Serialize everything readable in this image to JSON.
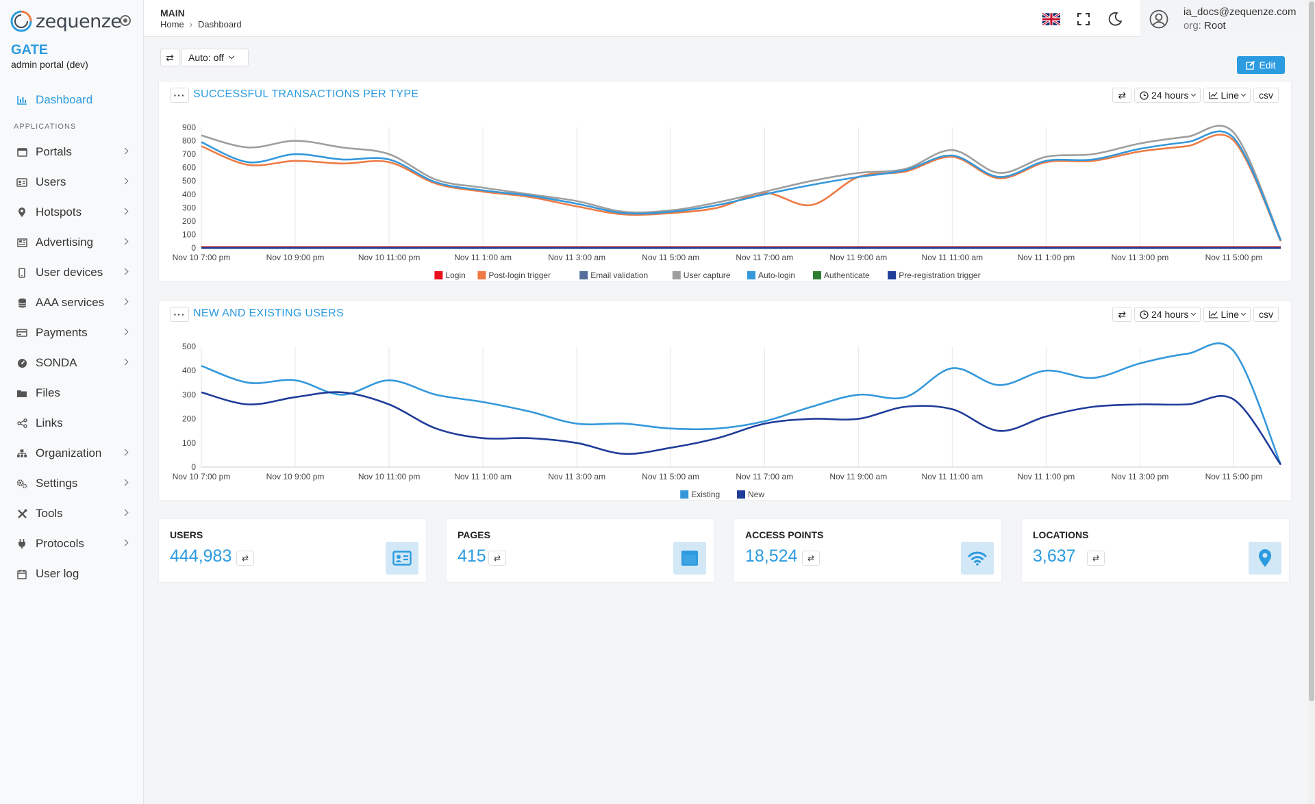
{
  "sidebar": {
    "logo_text": "zequenze",
    "brand_name": "GATE",
    "brand_sub": "admin portal (dev)",
    "section_label": "APPLICATIONS",
    "dashboard": {
      "label": "Dashboard",
      "icon": "chart-bar-icon"
    },
    "items": [
      {
        "label": "Portals",
        "icon": "window-icon",
        "chevron": true
      },
      {
        "label": "Users",
        "icon": "id-card-icon",
        "chevron": true
      },
      {
        "label": "Hotspots",
        "icon": "map-pin-icon",
        "chevron": true
      },
      {
        "label": "Advertising",
        "icon": "newspaper-icon",
        "chevron": true
      },
      {
        "label": "User devices",
        "icon": "mobile-icon",
        "chevron": true
      },
      {
        "label": "AAA services",
        "icon": "database-icon",
        "chevron": true
      },
      {
        "label": "Payments",
        "icon": "credit-card-icon",
        "chevron": true
      },
      {
        "label": "SONDA",
        "icon": "gauge-icon",
        "chevron": true
      },
      {
        "label": "Files",
        "icon": "folder-icon",
        "chevron": false
      },
      {
        "label": "Links",
        "icon": "share-icon",
        "chevron": false
      },
      {
        "label": "Organization",
        "icon": "sitemap-icon",
        "chevron": true
      },
      {
        "label": "Settings",
        "icon": "cogs-icon",
        "chevron": true
      },
      {
        "label": "Tools",
        "icon": "tools-icon",
        "chevron": true
      },
      {
        "label": "Protocols",
        "icon": "plug-icon",
        "chevron": true
      },
      {
        "label": "User log",
        "icon": "calendar-icon",
        "chevron": false
      }
    ]
  },
  "header": {
    "title": "MAIN",
    "breadcrumb": [
      "Home",
      "Dashboard"
    ],
    "breadcrumb_sep": "›",
    "user_email": "ia_docs@zequenze.com",
    "org_label": "org:",
    "org_value": "Root"
  },
  "toolbar": {
    "refresh_glyph": "⇄",
    "auto_label": "Auto: off",
    "edit_label": "Edit"
  },
  "card_tools": {
    "range_label": "24 hours",
    "type_label": "Line",
    "csv_label": "csv",
    "dots": "···"
  },
  "colors": {
    "accent": "#2c9be0",
    "login": "#e8111b",
    "post_login": "#ee7b44",
    "email": "#546e9a",
    "user_capture": "#9e9e9e",
    "auto_login": "#3498db",
    "authenticate": "#2e7d32",
    "prereg": "#1f3c99",
    "existing": "#3498db",
    "new": "#1f3c99"
  },
  "chart_data": [
    {
      "title": "SUCCESSFUL TRANSACTIONS PER TYPE",
      "type": "line",
      "ylim": [
        0,
        900
      ],
      "yticks": [
        0,
        100,
        200,
        300,
        400,
        500,
        600,
        700,
        800,
        900
      ],
      "xlabels": [
        "Nov 10 7:00 pm",
        "Nov 10 9:00 pm",
        "Nov 10 11:00 pm",
        "Nov 11 1:00 am",
        "Nov 11 3:00 am",
        "Nov 11 5:00 am",
        "Nov 11 7:00 am",
        "Nov 11 9:00 am",
        "Nov 11 11:00 am",
        "Nov 11 1:00 pm",
        "Nov 11 3:00 pm",
        "Nov 11 5:00 pm"
      ],
      "x": [
        0,
        1,
        2,
        3,
        4,
        5,
        6,
        7,
        8,
        9,
        10,
        11,
        12,
        13,
        14,
        15,
        16,
        17,
        18,
        19,
        20,
        21,
        22,
        23
      ],
      "series": [
        {
          "name": "Login",
          "color": "#e8111b",
          "values": [
            5,
            5,
            5,
            5,
            5,
            5,
            5,
            5,
            5,
            5,
            5,
            5,
            5,
            5,
            5,
            5,
            5,
            5,
            5,
            5,
            5,
            5,
            5,
            5
          ]
        },
        {
          "name": "Post-login trigger",
          "color": "#ee7b44",
          "values": [
            760,
            620,
            650,
            630,
            640,
            480,
            420,
            380,
            310,
            250,
            260,
            300,
            410,
            320,
            530,
            570,
            680,
            520,
            640,
            650,
            720,
            760,
            800,
            50
          ]
        },
        {
          "name": "Email validation",
          "color": "#546e9a",
          "values": [
            0,
            0,
            0,
            0,
            0,
            0,
            0,
            0,
            0,
            0,
            0,
            0,
            0,
            0,
            0,
            0,
            0,
            0,
            0,
            0,
            0,
            0,
            0,
            0
          ]
        },
        {
          "name": "User capture",
          "color": "#9e9e9e",
          "values": [
            840,
            750,
            800,
            750,
            700,
            510,
            450,
            400,
            350,
            270,
            280,
            340,
            420,
            500,
            560,
            590,
            730,
            560,
            680,
            700,
            780,
            830,
            860,
            60
          ]
        },
        {
          "name": "Auto-login",
          "color": "#3498db",
          "values": [
            790,
            640,
            700,
            660,
            660,
            490,
            430,
            390,
            330,
            260,
            270,
            320,
            400,
            470,
            530,
            580,
            690,
            530,
            650,
            660,
            740,
            790,
            820,
            55
          ]
        },
        {
          "name": "Authenticate",
          "color": "#2e7d32",
          "values": [
            0,
            0,
            0,
            0,
            0,
            0,
            0,
            0,
            0,
            0,
            0,
            0,
            0,
            0,
            0,
            0,
            0,
            0,
            0,
            0,
            0,
            0,
            0,
            0
          ]
        },
        {
          "name": "Pre-registration trigger",
          "color": "#1f3c99",
          "values": [
            0,
            0,
            0,
            0,
            0,
            0,
            0,
            0,
            0,
            0,
            0,
            0,
            0,
            0,
            0,
            0,
            0,
            0,
            0,
            0,
            0,
            0,
            0,
            0
          ]
        }
      ],
      "legend_order": [
        0,
        1,
        2,
        3,
        4,
        5,
        6
      ]
    },
    {
      "title": "NEW AND EXISTING USERS",
      "type": "line",
      "ylim": [
        0,
        500
      ],
      "yticks": [
        0,
        100,
        200,
        300,
        400,
        500
      ],
      "xlabels": [
        "Nov 10 7:00 pm",
        "Nov 10 9:00 pm",
        "Nov 10 11:00 pm",
        "Nov 11 1:00 am",
        "Nov 11 3:00 am",
        "Nov 11 5:00 am",
        "Nov 11 7:00 am",
        "Nov 11 9:00 am",
        "Nov 11 11:00 am",
        "Nov 11 1:00 pm",
        "Nov 11 3:00 pm",
        "Nov 11 5:00 pm"
      ],
      "x": [
        0,
        1,
        2,
        3,
        4,
        5,
        6,
        7,
        8,
        9,
        10,
        11,
        12,
        13,
        14,
        15,
        16,
        17,
        18,
        19,
        20,
        21,
        22,
        23
      ],
      "series": [
        {
          "name": "Existing",
          "color": "#3498db",
          "values": [
            420,
            350,
            360,
            300,
            360,
            300,
            270,
            230,
            180,
            180,
            160,
            160,
            190,
            250,
            300,
            290,
            410,
            340,
            400,
            370,
            430,
            470,
            480,
            10
          ]
        },
        {
          "name": "New",
          "color": "#1f3c99",
          "values": [
            310,
            260,
            290,
            310,
            260,
            160,
            120,
            120,
            100,
            55,
            80,
            120,
            180,
            200,
            200,
            250,
            240,
            150,
            210,
            250,
            260,
            260,
            280,
            10
          ]
        }
      ]
    }
  ],
  "stats": [
    {
      "label": "USERS",
      "value": "444,983",
      "icon": "id-card-icon"
    },
    {
      "label": "PAGES",
      "value": "415",
      "icon": "window-icon"
    },
    {
      "label": "ACCESS POINTS",
      "value": "18,524",
      "icon": "wifi-icon"
    },
    {
      "label": "LOCATIONS",
      "value": "3,637",
      "icon": "map-pin-icon"
    }
  ]
}
